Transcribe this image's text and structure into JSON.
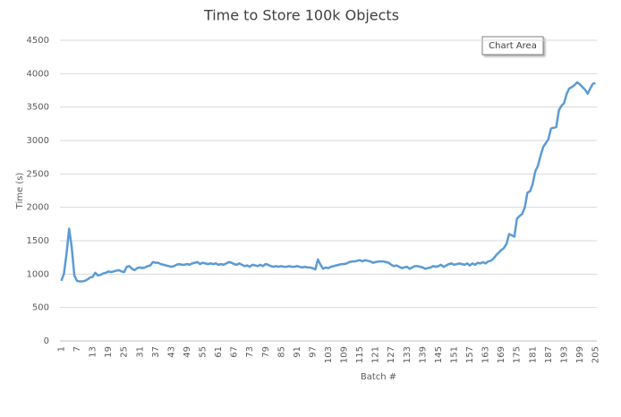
{
  "chart_data": {
    "type": "line",
    "title": "Time to Store 100k Objects",
    "x_label": "Batch #",
    "y_label": "Time (s)",
    "tooltip": "Chart Area",
    "categories": [
      1,
      null,
      null,
      null,
      null,
      null,
      7,
      null,
      null,
      null,
      null,
      null,
      13,
      null,
      null,
      null,
      null,
      null,
      19,
      null,
      null,
      null,
      null,
      null,
      25,
      null,
      null,
      null,
      null,
      null,
      31,
      null,
      null,
      null,
      null,
      null,
      37,
      null,
      null,
      null,
      null,
      null,
      43,
      null,
      null,
      null,
      null,
      null,
      49,
      null,
      null,
      null,
      null,
      null,
      55,
      null,
      null,
      null,
      null,
      null,
      61,
      null,
      null,
      null,
      null,
      null,
      67,
      null,
      null,
      null,
      null,
      null,
      73,
      null,
      null,
      null,
      null,
      null,
      79,
      null,
      null,
      null,
      null,
      null,
      85,
      null,
      null,
      null,
      null,
      null,
      91,
      null,
      null,
      null,
      null,
      null,
      97,
      null,
      null,
      null,
      null,
      null,
      103,
      null,
      null,
      null,
      null,
      null,
      109,
      null,
      null,
      null,
      null,
      null,
      115,
      null,
      null,
      null,
      null,
      null,
      121,
      null,
      null,
      null,
      null,
      null,
      127,
      null,
      null,
      null,
      null,
      null,
      133,
      null,
      null,
      null,
      null,
      null,
      139,
      null,
      null,
      null,
      null,
      null,
      145,
      null,
      null,
      null,
      null,
      null,
      151,
      null,
      null,
      null,
      null,
      null,
      157,
      null,
      null,
      null,
      null,
      null,
      163,
      null,
      null,
      null,
      null,
      null,
      169,
      null,
      null,
      null,
      null,
      null,
      175,
      null,
      null,
      null,
      null,
      null,
      181,
      null,
      null,
      null,
      null,
      null,
      187,
      null,
      null,
      null,
      null,
      null,
      193,
      null,
      null,
      null,
      null,
      null,
      199,
      null,
      null,
      null,
      null,
      null,
      205
    ],
    "values": [
      900,
      1000,
      1300,
      1680,
      1400,
      980,
      900,
      890,
      890,
      900,
      920,
      950,
      960,
      1020,
      980,
      990,
      1010,
      1020,
      1040,
      1030,
      1040,
      1050,
      1060,
      1040,
      1030,
      1110,
      1120,
      1080,
      1060,
      1090,
      1100,
      1090,
      1100,
      1120,
      1130,
      1180,
      1170,
      1170,
      1150,
      1140,
      1130,
      1120,
      1110,
      1120,
      1140,
      1150,
      1140,
      1140,
      1150,
      1140,
      1160,
      1170,
      1180,
      1150,
      1170,
      1160,
      1150,
      1160,
      1150,
      1160,
      1140,
      1150,
      1140,
      1160,
      1180,
      1170,
      1150,
      1140,
      1160,
      1140,
      1120,
      1130,
      1110,
      1140,
      1130,
      1120,
      1140,
      1120,
      1150,
      1140,
      1120,
      1110,
      1120,
      1110,
      1120,
      1110,
      1110,
      1120,
      1110,
      1110,
      1120,
      1110,
      1100,
      1110,
      1100,
      1100,
      1090,
      1070,
      1220,
      1140,
      1080,
      1100,
      1090,
      1110,
      1120,
      1130,
      1140,
      1150,
      1150,
      1160,
      1180,
      1190,
      1190,
      1200,
      1210,
      1190,
      1210,
      1200,
      1190,
      1170,
      1180,
      1190,
      1190,
      1190,
      1180,
      1170,
      1140,
      1120,
      1130,
      1110,
      1090,
      1100,
      1110,
      1080,
      1100,
      1120,
      1120,
      1110,
      1100,
      1080,
      1090,
      1100,
      1120,
      1110,
      1120,
      1140,
      1110,
      1130,
      1150,
      1160,
      1140,
      1150,
      1160,
      1150,
      1140,
      1160,
      1130,
      1160,
      1140,
      1170,
      1160,
      1180,
      1160,
      1190,
      1200,
      1230,
      1280,
      1320,
      1360,
      1390,
      1450,
      1600,
      1580,
      1560,
      1830,
      1870,
      1900,
      2000,
      2220,
      2240,
      2350,
      2540,
      2620,
      2770,
      2900,
      2960,
      3020,
      3180,
      3190,
      3200,
      3450,
      3520,
      3560,
      3700,
      3780,
      3800,
      3830,
      3870,
      3840,
      3800,
      3760,
      3700,
      3780,
      3850,
      3860
    ],
    "color": "#5b9bd5",
    "ylim": [
      0,
      4500
    ],
    "yticks": [
      0,
      500,
      1000,
      1500,
      2000,
      2500,
      3000,
      3500,
      4000,
      4500
    ],
    "grid": true
  }
}
